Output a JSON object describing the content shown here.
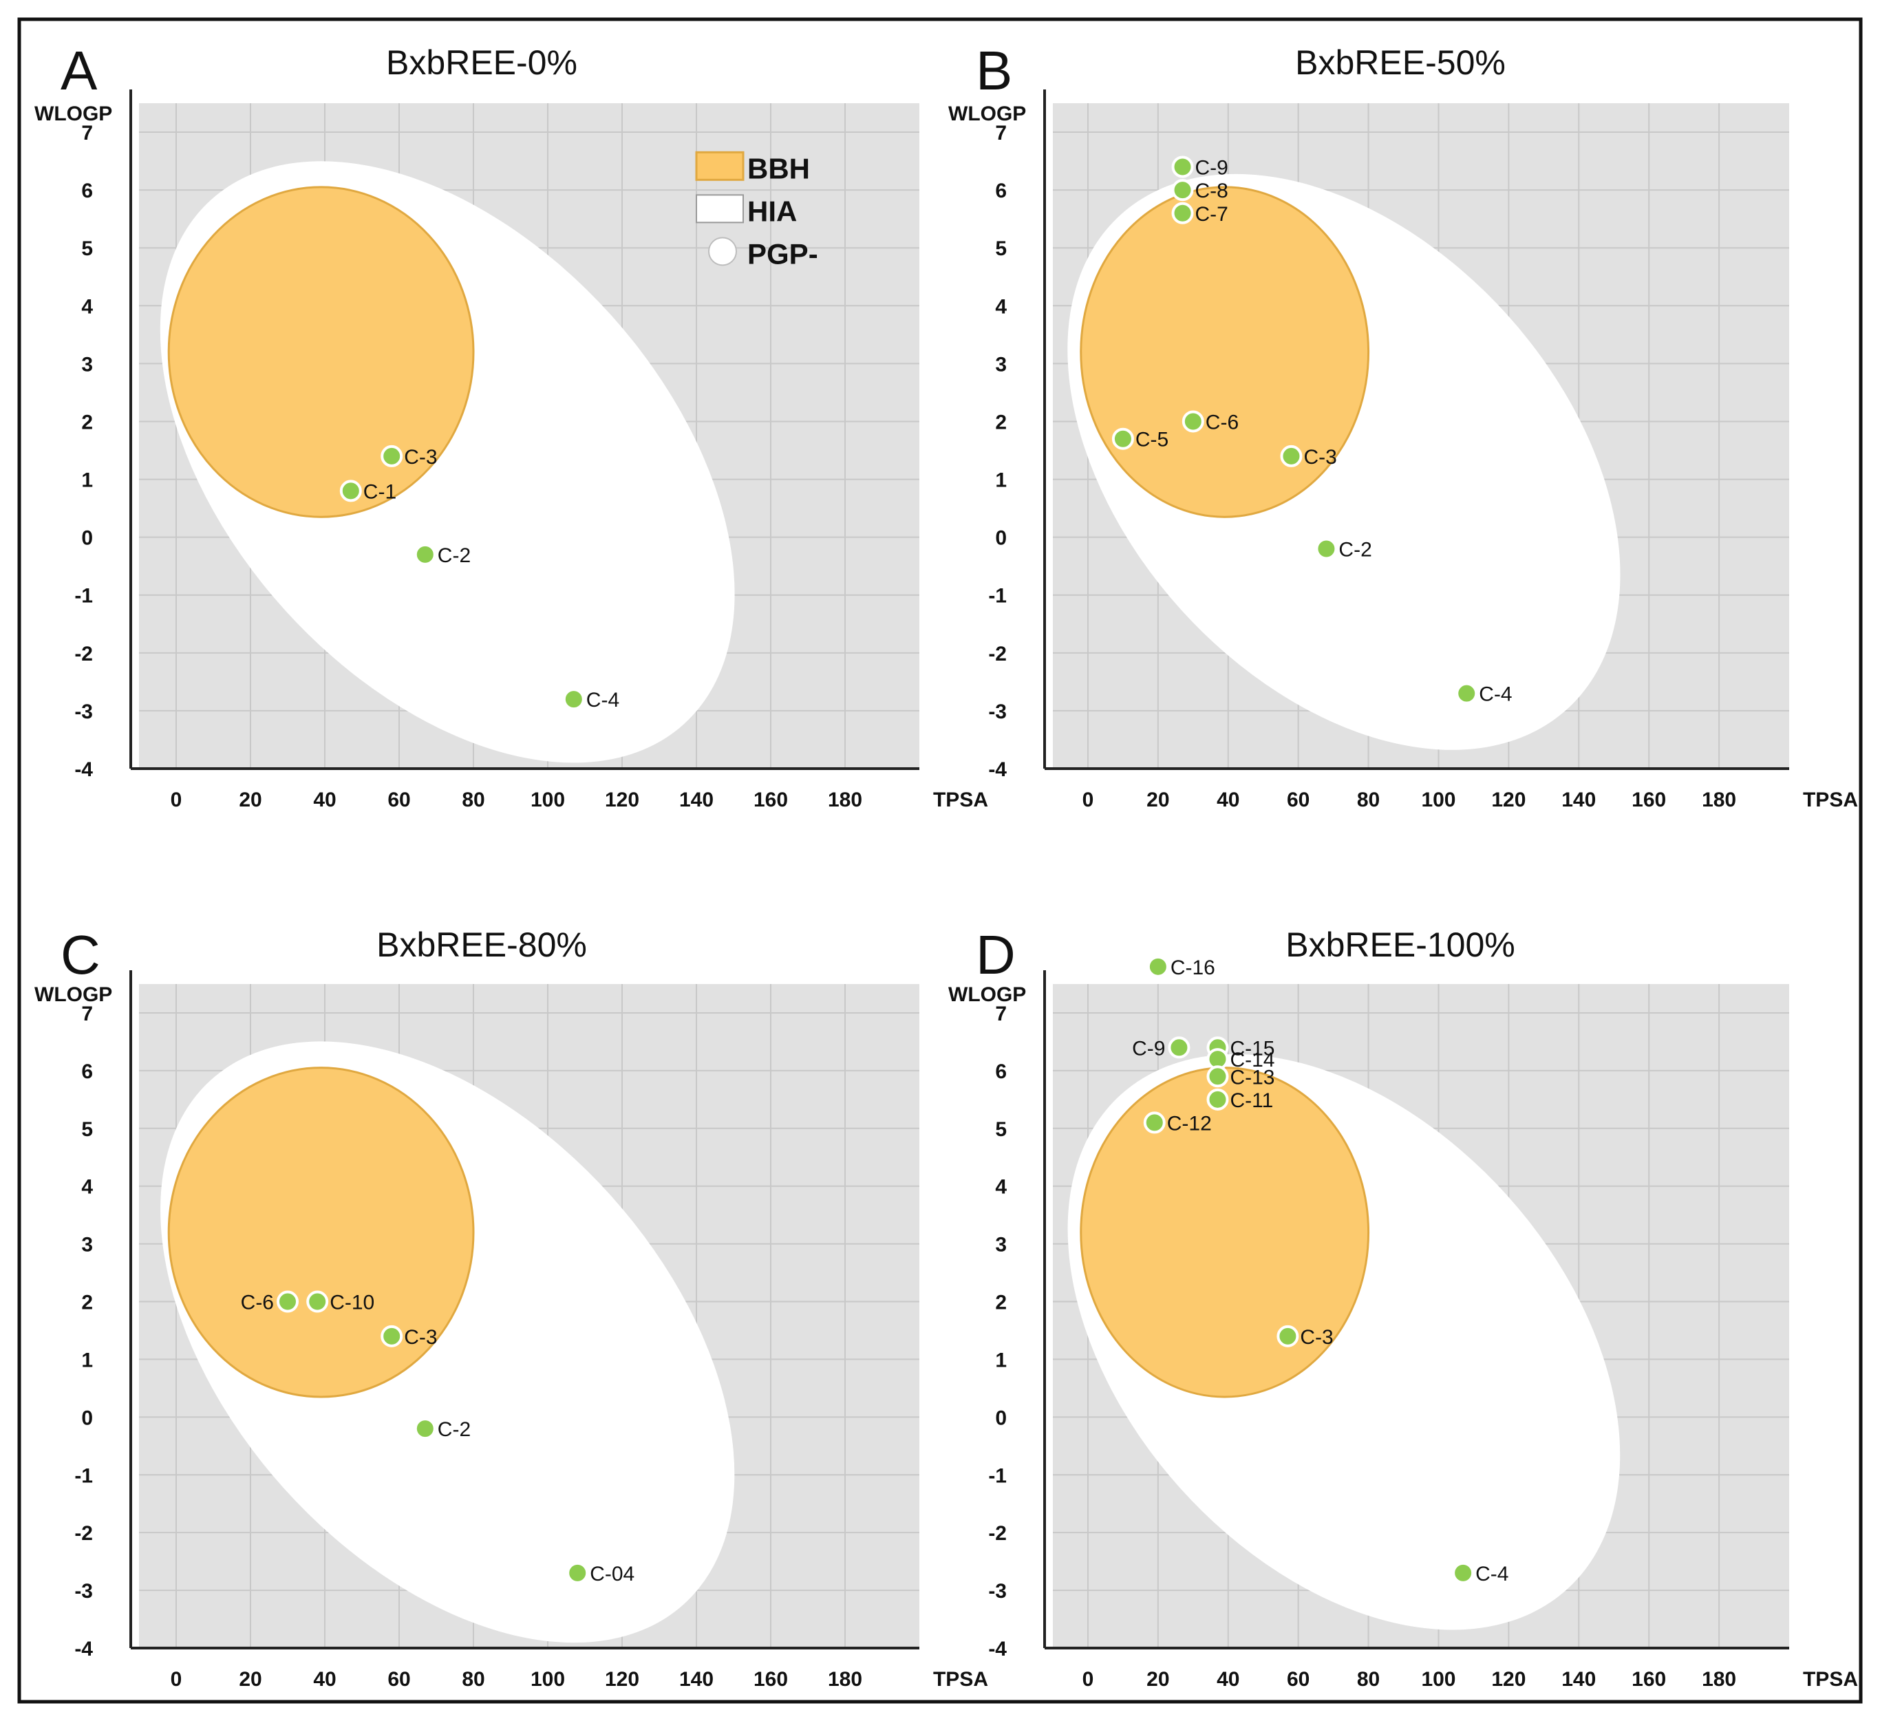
{
  "colors": {
    "background": "#ffffff",
    "plot_bg": "#e1e1e1",
    "grid": "#c8c8c8",
    "hia_fill": "#ffffff",
    "bbh_fill": "#fcc766",
    "bbh_stroke": "#e0a840",
    "point_fill": "#8ccc4e",
    "point_stroke": "#ffffff",
    "axis": "#222222",
    "text": "#111111"
  },
  "chart_data": [
    {
      "type": "scatter",
      "panel": "A",
      "title": "BxbREE-0%",
      "xlabel": "TPSA",
      "ylabel": "WLOGP",
      "xlim": [
        -10,
        200
      ],
      "ylim": [
        -4,
        7.5
      ],
      "xticks": [
        0,
        20,
        40,
        60,
        80,
        100,
        120,
        140,
        160,
        180
      ],
      "yticks": [
        7,
        6,
        5,
        4,
        3,
        2,
        1,
        0,
        -1,
        -2,
        -3,
        -4
      ],
      "legend": [
        {
          "label": "BBH",
          "marker": "orange-square-icon"
        },
        {
          "label": "HIA",
          "marker": "white-square-icon"
        },
        {
          "label": "PGP-",
          "marker": "white-circle-icon"
        }
      ],
      "points": [
        {
          "label": "C-3",
          "x": 58,
          "y": 1.4
        },
        {
          "label": "C-1",
          "x": 47,
          "y": 0.8
        },
        {
          "label": "C-2",
          "x": 67,
          "y": -0.3
        },
        {
          "label": "C-4",
          "x": 107,
          "y": -2.8
        }
      ]
    },
    {
      "type": "scatter",
      "panel": "B",
      "title": "BxbREE-50%",
      "xlabel": "TPSA",
      "ylabel": "WLOGP",
      "xlim": [
        -10,
        200
      ],
      "ylim": [
        -4,
        7.5
      ],
      "xticks": [
        0,
        20,
        40,
        60,
        80,
        100,
        120,
        140,
        160,
        180
      ],
      "yticks": [
        7,
        6,
        5,
        4,
        3,
        2,
        1,
        0,
        -1,
        -2,
        -3,
        -4
      ],
      "points": [
        {
          "label": "C-9",
          "x": 27,
          "y": 6.4
        },
        {
          "label": "C-8",
          "x": 27,
          "y": 6.0
        },
        {
          "label": "C-7",
          "x": 27,
          "y": 5.6
        },
        {
          "label": "C-6",
          "x": 30,
          "y": 2.0
        },
        {
          "label": "C-5",
          "x": 10,
          "y": 1.7
        },
        {
          "label": "C-3",
          "x": 58,
          "y": 1.4
        },
        {
          "label": "C-2",
          "x": 68,
          "y": -0.2
        },
        {
          "label": "C-4",
          "x": 108,
          "y": -2.7
        }
      ]
    },
    {
      "type": "scatter",
      "panel": "C",
      "title": "BxbREE-80%",
      "xlabel": "TPSA",
      "ylabel": "WLOGP",
      "xlim": [
        -10,
        200
      ],
      "ylim": [
        -4,
        7.5
      ],
      "xticks": [
        0,
        20,
        40,
        60,
        80,
        100,
        120,
        140,
        160,
        180
      ],
      "yticks": [
        7,
        6,
        5,
        4,
        3,
        2,
        1,
        0,
        -1,
        -2,
        -3,
        -4
      ],
      "points": [
        {
          "label": "C-6",
          "x": 30,
          "y": 2.0
        },
        {
          "label": "C-10",
          "x": 38,
          "y": 2.0
        },
        {
          "label": "C-3",
          "x": 58,
          "y": 1.4
        },
        {
          "label": "C-2",
          "x": 67,
          "y": -0.2
        },
        {
          "label": "C-04",
          "x": 108,
          "y": -2.7
        }
      ]
    },
    {
      "type": "scatter",
      "panel": "D",
      "title": "BxbREE-100%",
      "xlabel": "TPSA",
      "ylabel": "WLOGP",
      "xlim": [
        -10,
        200
      ],
      "ylim": [
        -4,
        7.5
      ],
      "xticks": [
        0,
        20,
        40,
        60,
        80,
        100,
        120,
        140,
        160,
        180
      ],
      "yticks": [
        7,
        6,
        5,
        4,
        3,
        2,
        1,
        0,
        -1,
        -2,
        -3,
        -4
      ],
      "points": [
        {
          "label": "C-16",
          "x": 20,
          "y": 7.8
        },
        {
          "label": "C-9",
          "x": 26,
          "y": 6.4
        },
        {
          "label": "C-15",
          "x": 37,
          "y": 6.4
        },
        {
          "label": "C-14",
          "x": 37,
          "y": 6.2
        },
        {
          "label": "C-13",
          "x": 37,
          "y": 5.9
        },
        {
          "label": "C-11",
          "x": 37,
          "y": 5.5
        },
        {
          "label": "C-12",
          "x": 19,
          "y": 5.1
        },
        {
          "label": "C-3",
          "x": 57,
          "y": 1.4
        },
        {
          "label": "C-4",
          "x": 107,
          "y": -2.7
        }
      ]
    }
  ]
}
